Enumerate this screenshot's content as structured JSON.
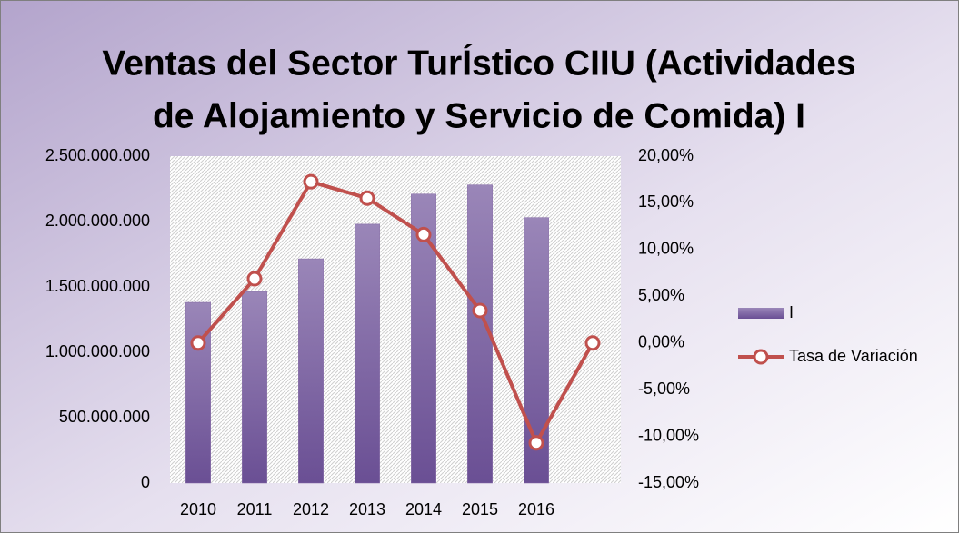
{
  "chart_data": {
    "type": "bar",
    "title": [
      "Ventas del Sector TurÍstico CIIU (Actividades",
      "de Alojamiento y Servicio de Comida) I"
    ],
    "categories": [
      "2010",
      "2011",
      "2012",
      "2013",
      "2014",
      "2015",
      "2016",
      null
    ],
    "series": [
      {
        "name": "I",
        "type": "bar",
        "color": "#8064a2",
        "axis": "y",
        "values": [
          1382000000,
          1465000000,
          1715000000,
          1980000000,
          2210000000,
          2280000000,
          2030000000,
          null
        ]
      },
      {
        "name": "Tasa de Variación",
        "type": "line",
        "color": "#c0504d",
        "axis": "y2",
        "values": [
          0,
          6.87,
          17.26,
          15.5,
          11.6,
          3.47,
          -10.7,
          0
        ]
      }
    ],
    "ylim": [
      0,
      2500000000
    ],
    "yticks": [
      0,
      {
        "value": 500000000,
        "label": "500.000.000"
      },
      {
        "value": 1000000000,
        "label": "1.000.000.000"
      },
      {
        "value": 1500000000,
        "label": "1.500.000.000"
      },
      {
        "value": 2000000000,
        "label": "2.000.000.000"
      },
      {
        "value": 2500000000,
        "label": "2.500.000.000"
      }
    ],
    "y2lim": [
      -15,
      20
    ],
    "y2ticks": [
      {
        "value": -15,
        "label": "-15,00%"
      },
      {
        "value": -10,
        "label": "-10,00%"
      },
      {
        "value": -5,
        "label": "-5,00%"
      },
      {
        "value": 0,
        "label": "0,00%"
      },
      {
        "value": 5,
        "label": "5,00%"
      },
      {
        "value": 10,
        "label": "10,00%"
      },
      {
        "value": 15,
        "label": "15,00%"
      },
      {
        "value": 20,
        "label": "20,00%"
      }
    ],
    "legend": "right"
  }
}
